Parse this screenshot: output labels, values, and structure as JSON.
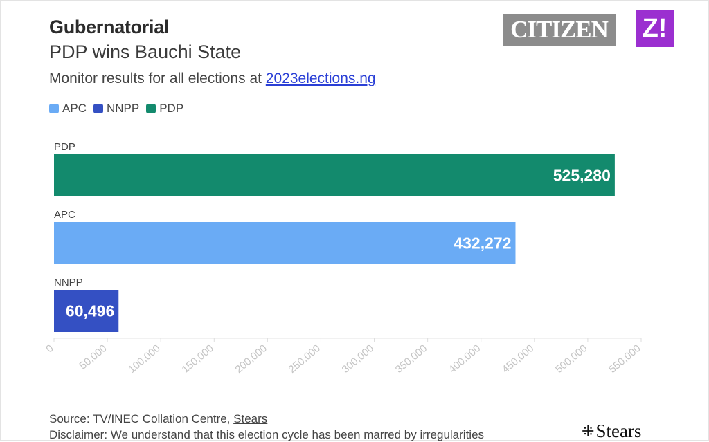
{
  "header": {
    "title": "Gubernatorial",
    "subtitle": "PDP wins Bauchi State",
    "monitor_text": "Monitor results for all elections at ",
    "monitor_link": "2023elections.ng"
  },
  "logos": {
    "citizen": "CITIZEN",
    "z": "Z!",
    "stears": "Stears"
  },
  "footer": {
    "source_prefix": "Source: TV/INEC Collation Centre, ",
    "source_link": "Stears",
    "disclaimer": "Disclaimer: We understand that this election cycle has been marred by irregularities"
  },
  "legend": [
    {
      "label": "APC",
      "color": "#6aabf5"
    },
    {
      "label": "NNPP",
      "color": "#3450c3"
    },
    {
      "label": "PDP",
      "color": "#138a6d"
    }
  ],
  "chart_data": {
    "type": "bar",
    "orientation": "horizontal",
    "categories": [
      "PDP",
      "APC",
      "NNPP"
    ],
    "values": [
      525280,
      432272,
      60496
    ],
    "value_labels": [
      "525,280",
      "432,272",
      "60,496"
    ],
    "colors": [
      "#138a6d",
      "#6aabf5",
      "#3450c3"
    ],
    "xlim": [
      0,
      550000
    ],
    "x_ticks": [
      0,
      50000,
      100000,
      150000,
      200000,
      250000,
      300000,
      350000,
      400000,
      450000,
      500000,
      550000
    ],
    "x_tick_labels": [
      "0",
      "50,000",
      "100,000",
      "150,000",
      "200,000",
      "250,000",
      "300,000",
      "350,000",
      "400,000",
      "450,000",
      "500,000",
      "550,000"
    ],
    "grid": false,
    "legend_position": "top-left"
  }
}
